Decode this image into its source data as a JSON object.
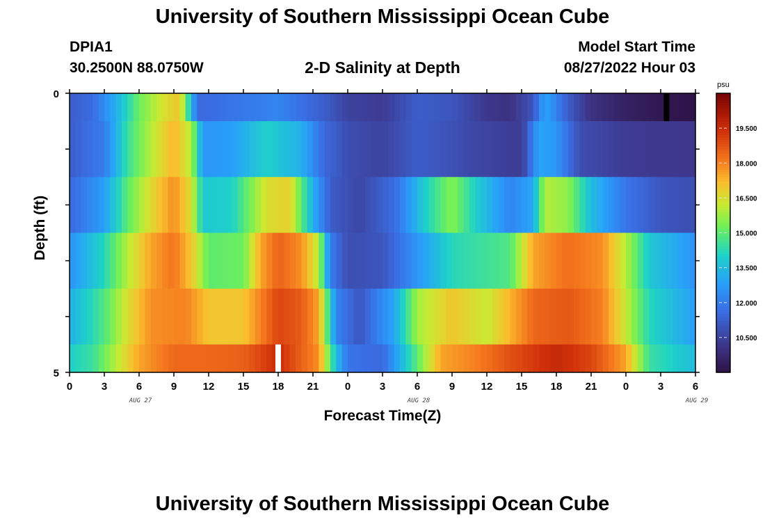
{
  "header": {
    "title": "University of Southern Mississippi Ocean Cube",
    "station_id": "DPIA1",
    "station_coords": "30.2500N  88.0750W",
    "plot_title": "2-D Salinity at Depth",
    "model_start_label": "Model Start Time",
    "model_start_value": "08/27/2022 Hour 03"
  },
  "footer": {
    "title": "University of Southern Mississippi Ocean Cube"
  },
  "chart_data": {
    "type": "heatmap",
    "xlabel": "Forecast Time(Z)",
    "ylabel": "Depth (ft)",
    "x_tick_labels": [
      "0",
      "3",
      "6",
      "9",
      "12",
      "15",
      "18",
      "21",
      "0",
      "3",
      "6",
      "9",
      "12",
      "15",
      "18",
      "21",
      "0",
      "3",
      "6"
    ],
    "x_date_labels": [
      "AUG 27",
      "AUG 28",
      "AUG 29"
    ],
    "y_tick_labels": [
      "0",
      "5"
    ],
    "ylim": [
      0,
      5
    ],
    "x_range_hours": [
      0,
      54
    ],
    "colorbar": {
      "unit": "psu",
      "range": [
        9.0,
        21.0
      ],
      "tick_labels": [
        "19.500",
        "18.000",
        "16.500",
        "15.000",
        "13.500",
        "12.000",
        "10.500"
      ],
      "tick_values": [
        19.5,
        18.0,
        16.5,
        15.0,
        13.5,
        12.0,
        10.5
      ]
    },
    "layers": [
      {
        "depth_range": [
          0.0,
          0.5
        ],
        "keyframes_hours_psu": [
          [
            0,
            11.2
          ],
          [
            2,
            11.6
          ],
          [
            4,
            13.2
          ],
          [
            6,
            15.2
          ],
          [
            8,
            16.4
          ],
          [
            9.5,
            17.0
          ],
          [
            10.5,
            13.5
          ],
          [
            11,
            11.5
          ],
          [
            14,
            11.8
          ],
          [
            18,
            12.2
          ],
          [
            22,
            11.2
          ],
          [
            24,
            10.5
          ],
          [
            27,
            10.3
          ],
          [
            30,
            11.2
          ],
          [
            33,
            11.0
          ],
          [
            36,
            10.2
          ],
          [
            38,
            10.0
          ],
          [
            40,
            11.0
          ],
          [
            41,
            13.0
          ],
          [
            43,
            11.2
          ],
          [
            45,
            10.0
          ],
          [
            48,
            9.5
          ],
          [
            51,
            9.2
          ],
          [
            54,
            9.0
          ]
        ]
      },
      {
        "depth_range": [
          0.5,
          1.5
        ],
        "keyframes_hours_psu": [
          [
            0,
            11.2
          ],
          [
            3,
            12.0
          ],
          [
            5,
            14.5
          ],
          [
            7,
            16.0
          ],
          [
            9,
            17.3
          ],
          [
            10.5,
            16.0
          ],
          [
            11.5,
            12.6
          ],
          [
            14,
            12.8
          ],
          [
            17,
            14.0
          ],
          [
            20,
            13.2
          ],
          [
            22,
            11.5
          ],
          [
            24,
            10.8
          ],
          [
            27,
            10.5
          ],
          [
            30,
            11.2
          ],
          [
            32,
            11.0
          ],
          [
            35,
            10.6
          ],
          [
            39,
            10.3
          ],
          [
            40.5,
            13.0
          ],
          [
            42,
            12.6
          ],
          [
            44,
            10.8
          ],
          [
            48,
            10.3
          ],
          [
            54,
            10.2
          ]
        ]
      },
      {
        "depth_range": [
          1.5,
          2.5
        ],
        "keyframes_hours_psu": [
          [
            0,
            11.5
          ],
          [
            3,
            12.8
          ],
          [
            5,
            15.0
          ],
          [
            7,
            16.6
          ],
          [
            9,
            17.8
          ],
          [
            10.5,
            16.5
          ],
          [
            11.5,
            13.8
          ],
          [
            14,
            14.0
          ],
          [
            17,
            16.5
          ],
          [
            19,
            16.8
          ],
          [
            21,
            13.2
          ],
          [
            22.5,
            11.2
          ],
          [
            25,
            10.6
          ],
          [
            28,
            11.6
          ],
          [
            31,
            14.2
          ],
          [
            33,
            15.5
          ],
          [
            35,
            14.0
          ],
          [
            38,
            12.2
          ],
          [
            40,
            13.0
          ],
          [
            41,
            16.0
          ],
          [
            43,
            15.6
          ],
          [
            45,
            13.5
          ],
          [
            48,
            11.8
          ],
          [
            51,
            11.0
          ],
          [
            54,
            10.8
          ]
        ]
      },
      {
        "depth_range": [
          2.5,
          3.5
        ],
        "keyframes_hours_psu": [
          [
            0,
            12.5
          ],
          [
            3,
            14.2
          ],
          [
            5,
            16.0
          ],
          [
            7,
            17.5
          ],
          [
            9,
            18.2
          ],
          [
            10.5,
            17.0
          ],
          [
            12,
            15.0
          ],
          [
            15,
            15.2
          ],
          [
            16.5,
            17.5
          ],
          [
            18,
            18.5
          ],
          [
            20,
            17.8
          ],
          [
            21.5,
            16.0
          ],
          [
            22.5,
            12.0
          ],
          [
            24,
            10.8
          ],
          [
            27,
            11.0
          ],
          [
            30,
            12.6
          ],
          [
            33,
            14.2
          ],
          [
            38,
            14.8
          ],
          [
            40,
            17.5
          ],
          [
            43,
            18.3
          ],
          [
            46,
            17.8
          ],
          [
            48,
            16.0
          ],
          [
            50,
            13.8
          ],
          [
            54,
            12.5
          ]
        ]
      },
      {
        "depth_range": [
          3.5,
          4.5
        ],
        "keyframes_hours_psu": [
          [
            0,
            13.2
          ],
          [
            3,
            14.8
          ],
          [
            5,
            16.5
          ],
          [
            7,
            17.8
          ],
          [
            10,
            18.0
          ],
          [
            12,
            17.0
          ],
          [
            15,
            17.0
          ],
          [
            18,
            19.0
          ],
          [
            20,
            18.6
          ],
          [
            21.5,
            17.5
          ],
          [
            23,
            12.2
          ],
          [
            25,
            11.0
          ],
          [
            28,
            13.0
          ],
          [
            30,
            15.8
          ],
          [
            33,
            17.0
          ],
          [
            36,
            16.2
          ],
          [
            40,
            18.4
          ],
          [
            43,
            18.7
          ],
          [
            46,
            18.0
          ],
          [
            48,
            16.2
          ],
          [
            50,
            14.2
          ],
          [
            54,
            12.8
          ]
        ]
      },
      {
        "depth_range": [
          4.5,
          5.0
        ],
        "keyframes_hours_psu": [
          [
            0,
            14.0
          ],
          [
            2,
            14.5
          ],
          [
            4,
            16.0
          ],
          [
            6,
            17.5
          ],
          [
            9,
            18.4
          ],
          [
            12,
            18.4
          ],
          [
            15,
            18.5
          ],
          [
            18,
            19.5
          ],
          [
            20,
            18.5
          ],
          [
            21.5,
            17.8
          ],
          [
            23,
            13.5
          ],
          [
            24,
            11.8
          ],
          [
            27,
            11.5
          ],
          [
            30,
            15.0
          ],
          [
            32,
            17.5
          ],
          [
            35,
            18.0
          ],
          [
            38,
            18.8
          ],
          [
            42,
            19.6
          ],
          [
            45,
            19.0
          ],
          [
            48,
            17.5
          ],
          [
            50,
            14.5
          ],
          [
            54,
            13.5
          ]
        ]
      }
    ],
    "marks": [
      {
        "hour": 51.5,
        "depth_range": [
          0.0,
          0.5
        ],
        "color": "#000000"
      },
      {
        "hour": 18.0,
        "depth_range": [
          4.5,
          5.0
        ],
        "color": "#ffffff"
      }
    ]
  }
}
